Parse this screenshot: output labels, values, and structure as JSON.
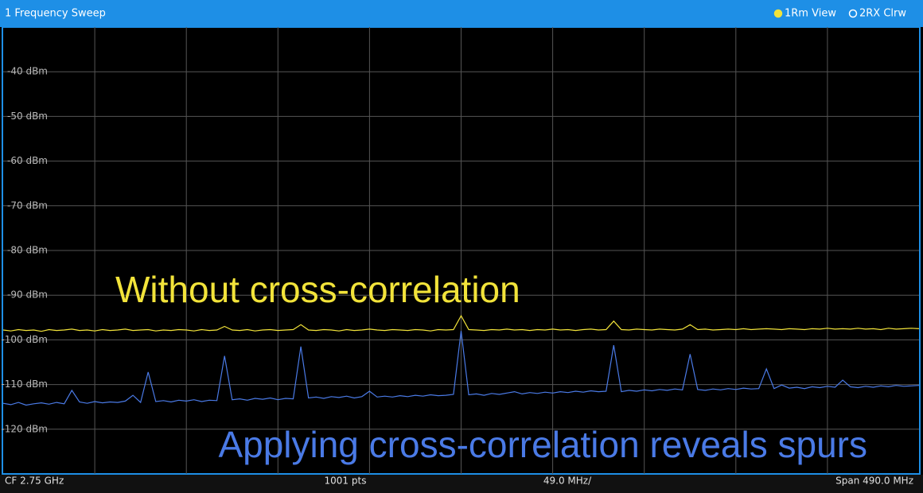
{
  "header": {
    "title": "1 Frequency Sweep"
  },
  "chart_data": {
    "type": "line",
    "ylim": [
      -130,
      -30
    ],
    "yticks": [
      {
        "value": -40,
        "label": "-40 dBm"
      },
      {
        "value": -50,
        "label": "-50 dBm"
      },
      {
        "value": -60,
        "label": "-60 dBm"
      },
      {
        "value": -70,
        "label": "-70 dBm"
      },
      {
        "value": -80,
        "label": "-80 dBm"
      },
      {
        "value": -90,
        "label": "-90 dBm"
      },
      {
        "value": -100,
        "label": "-100 dBm"
      },
      {
        "value": -110,
        "label": "-110 dBm"
      },
      {
        "value": -120,
        "label": "-120 dBm"
      }
    ],
    "grid": true,
    "annotations": [
      "Without cross-correlation",
      "Applying cross-correlation reveals spurs"
    ],
    "series": [
      {
        "name": "1Rm View",
        "color": "#f2e33a",
        "values": [
          -97.8,
          -98.0,
          -97.7,
          -97.9,
          -97.8,
          -98.1,
          -97.7,
          -97.9,
          -97.8,
          -97.6,
          -97.9,
          -97.8,
          -98.0,
          -97.7,
          -97.9,
          -97.8,
          -97.6,
          -97.9,
          -97.8,
          -97.7,
          -98.0,
          -97.8,
          -97.9,
          -97.7,
          -97.8,
          -98.0,
          -97.7,
          -97.9,
          -97.8,
          -97.0,
          -97.8,
          -97.9,
          -97.7,
          -98.0,
          -97.8,
          -97.7,
          -97.9,
          -97.8,
          -97.7,
          -96.6,
          -97.8,
          -97.9,
          -97.7,
          -97.8,
          -98.0,
          -97.7,
          -97.9,
          -97.8,
          -97.6,
          -97.8,
          -97.9,
          -97.7,
          -97.8,
          -97.9,
          -97.7,
          -97.8,
          -98.0,
          -97.7,
          -97.8,
          -97.7,
          -94.6,
          -97.7,
          -97.8,
          -97.9,
          -97.7,
          -97.8,
          -97.6,
          -97.8,
          -97.7,
          -97.9,
          -97.7,
          -97.8,
          -97.6,
          -97.8,
          -97.7,
          -97.9,
          -97.7,
          -97.6,
          -97.8,
          -97.7,
          -95.8,
          -97.7,
          -97.8,
          -97.6,
          -97.7,
          -97.8,
          -97.6,
          -97.7,
          -97.8,
          -97.6,
          -96.6,
          -97.7,
          -97.6,
          -97.8,
          -97.7,
          -97.6,
          -97.7,
          -97.5,
          -97.7,
          -97.6,
          -97.5,
          -97.6,
          -97.7,
          -97.5,
          -97.6,
          -97.7,
          -97.5,
          -97.6,
          -97.4,
          -97.6,
          -97.5,
          -97.6,
          -97.4,
          -97.6,
          -97.5,
          -97.7,
          -97.4,
          -97.6,
          -97.5,
          -97.4,
          -97.5
        ]
      },
      {
        "name": "2RX Clrw",
        "color": "#4a7ae6",
        "values": [
          -114.2,
          -114.5,
          -114.0,
          -114.6,
          -114.3,
          -114.1,
          -114.4,
          -114.0,
          -114.3,
          -111.3,
          -113.9,
          -114.2,
          -113.8,
          -114.1,
          -113.9,
          -114.0,
          -113.7,
          -112.4,
          -114.0,
          -107.2,
          -113.8,
          -113.6,
          -113.9,
          -113.5,
          -113.7,
          -113.4,
          -113.8,
          -113.5,
          -113.6,
          -103.6,
          -113.4,
          -113.2,
          -113.5,
          -113.1,
          -113.3,
          -113.0,
          -113.4,
          -113.1,
          -113.2,
          -101.5,
          -113.0,
          -112.8,
          -113.1,
          -112.7,
          -112.9,
          -112.6,
          -113.0,
          -112.7,
          -111.5,
          -112.8,
          -112.6,
          -112.8,
          -112.5,
          -112.7,
          -112.4,
          -112.6,
          -112.3,
          -112.5,
          -112.4,
          -112.2,
          -98.0,
          -112.3,
          -112.1,
          -112.4,
          -112.0,
          -112.2,
          -111.9,
          -111.6,
          -112.1,
          -111.8,
          -112.0,
          -111.7,
          -111.9,
          -111.6,
          -111.8,
          -111.5,
          -111.7,
          -111.4,
          -111.6,
          -111.5,
          -101.2,
          -111.6,
          -111.3,
          -111.5,
          -111.2,
          -111.4,
          -111.1,
          -111.3,
          -111.0,
          -111.2,
          -103.2,
          -111.1,
          -111.3,
          -111.0,
          -111.2,
          -110.9,
          -111.1,
          -110.8,
          -111.0,
          -110.9,
          -106.5,
          -110.9,
          -110.1,
          -110.8,
          -110.6,
          -110.9,
          -110.5,
          -110.7,
          -110.4,
          -110.6,
          -109.0,
          -110.5,
          -110.7,
          -110.4,
          -110.6,
          -110.3,
          -110.5,
          -110.2,
          -110.4,
          -110.3,
          -110.2
        ]
      }
    ]
  },
  "footer": [
    "CF 2.75 GHz",
    "1001 pts",
    "49.0 MHz/",
    "Span 490.0 MHz"
  ]
}
